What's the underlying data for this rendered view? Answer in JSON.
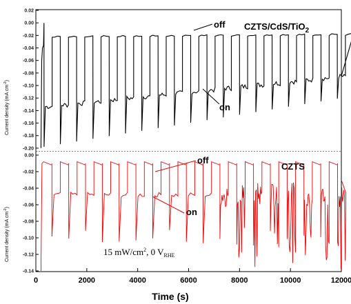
{
  "chart_data": [
    {
      "type": "line",
      "series": [
        {
          "name": "CZTS/CdS/TiO2",
          "color": "#000000",
          "base_on": -0.1,
          "base_off": -0.02
        }
      ],
      "series_label": {
        "text": "CZTS/CdS/TiO",
        "sub": "2"
      },
      "ylabel": {
        "text": "Current density (mA cm",
        "sup": "-2",
        "close": ")"
      },
      "ylim": [
        -0.21,
        0.02
      ],
      "yticks": [
        "0.02",
        "0.00",
        "-0.02",
        "-0.04",
        "-0.06",
        "-0.08",
        "-0.10",
        "-0.12",
        "-0.14",
        "-0.16",
        "-0.18",
        "-0.20"
      ],
      "annotations": [
        "off",
        "on"
      ],
      "reference_line_y": -0.205,
      "reference_line_color": "#8a8a00"
    },
    {
      "type": "line",
      "series": [
        {
          "name": "CZTS",
          "color": "#ee0000",
          "base_on": -0.05,
          "base_off": -0.01
        }
      ],
      "series_label": {
        "text": "CZTS",
        "sub": ""
      },
      "ylabel": {
        "text": "Current density (mA cm",
        "sup": "-2",
        "close": ")"
      },
      "ylim": [
        -0.14,
        0.0
      ],
      "yticks": [
        "0.00",
        "-0.02",
        "-0.04",
        "-0.06",
        "-0.08",
        "-0.10",
        "-0.12",
        "-0.14"
      ],
      "annotations": [
        "off",
        "on"
      ],
      "condition": {
        "text": "15 mW/cm",
        "sup": "2",
        "mid": ", 0 V",
        "sub": "RHE"
      }
    }
  ],
  "xaxis": {
    "label": "Time (s)",
    "xlim": [
      0,
      12000
    ],
    "ticks": [
      "0",
      "2000",
      "4000",
      "6000",
      "8000",
      "10000",
      "12000"
    ]
  }
}
